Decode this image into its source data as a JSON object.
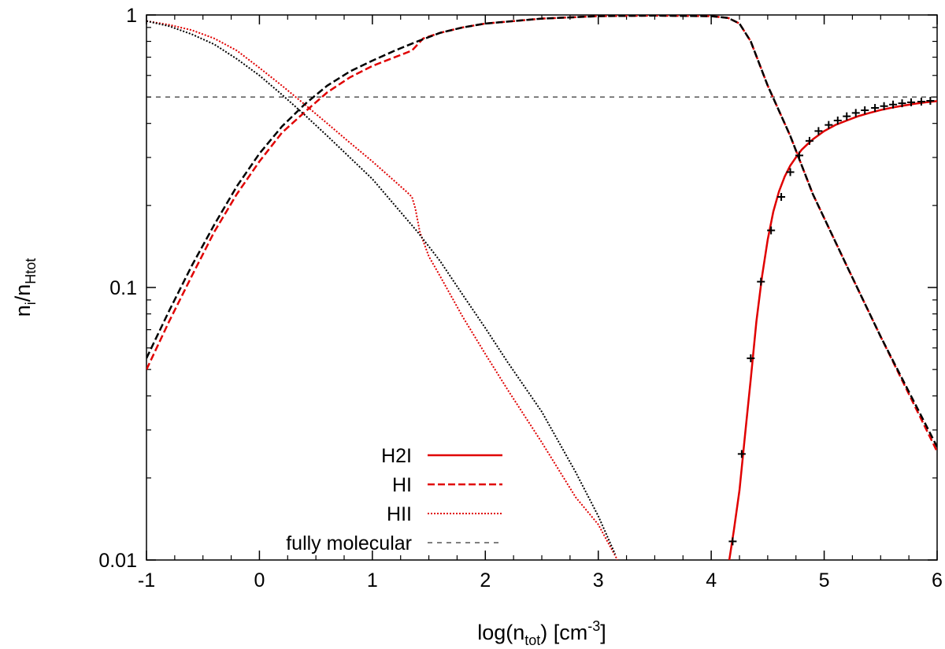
{
  "chart_data": {
    "type": "line",
    "title": "",
    "xlabel": {
      "base": "log(n",
      "sub": "tot",
      "mid": ") [cm",
      "sup": "-3",
      "end": "]"
    },
    "ylabel": {
      "base": "n",
      "sub1": "i",
      "mid": "/n",
      "sub2": "Htot"
    },
    "xlim": [
      -1,
      6
    ],
    "ylim": [
      0.01,
      1
    ],
    "yscale": "log",
    "xticks": [
      -1,
      0,
      1,
      2,
      3,
      4,
      5,
      6
    ],
    "xtick_labels": [
      "-1",
      "0",
      "1",
      "2",
      "3",
      "4",
      "5",
      "6"
    ],
    "yticks": [
      0.01,
      0.1,
      1
    ],
    "ytick_labels": [
      "0.01",
      "0.1",
      "1"
    ],
    "legend_position": "bottom-left",
    "colors": {
      "red": "#e00000",
      "black": "#000000"
    },
    "legend": [
      {
        "label": "H2I",
        "style": "solid",
        "color": "#e00000"
      },
      {
        "label": "HI",
        "style": "dashed",
        "color": "#e00000"
      },
      {
        "label": "HII",
        "style": "dotted",
        "color": "#e00000"
      },
      {
        "label": "fully molecular",
        "style": "thin-dashed",
        "color": "#000000"
      }
    ],
    "series": [
      {
        "name": "H2I (red)",
        "style": "solid",
        "color": "#e00000",
        "x": [
          4.16,
          4.2,
          4.25,
          4.3,
          4.35,
          4.4,
          4.45,
          4.5,
          4.55,
          4.6,
          4.65,
          4.7,
          4.75,
          4.8,
          4.85,
          4.9,
          5.0,
          5.1,
          5.2,
          5.3,
          5.4,
          5.5,
          5.6,
          5.7,
          5.8,
          5.9,
          6.0
        ],
        "y": [
          0.01,
          0.0128,
          0.018,
          0.029,
          0.046,
          0.075,
          0.11,
          0.15,
          0.19,
          0.225,
          0.255,
          0.28,
          0.3,
          0.32,
          0.335,
          0.35,
          0.375,
          0.395,
          0.41,
          0.425,
          0.437,
          0.448,
          0.457,
          0.465,
          0.472,
          0.478,
          0.483
        ]
      },
      {
        "name": "HI (red)",
        "style": "dashed",
        "color": "#e00000",
        "x": [
          -1.0,
          -0.8,
          -0.6,
          -0.4,
          -0.2,
          0.0,
          0.2,
          0.4,
          0.6,
          0.8,
          1.0,
          1.2,
          1.35,
          1.45,
          1.6,
          1.8,
          2.0,
          2.5,
          3.0,
          3.5,
          4.0,
          4.15,
          4.25,
          4.35,
          4.5,
          4.7,
          4.9,
          5.2,
          5.5,
          6.0
        ],
        "y": [
          0.05,
          0.075,
          0.11,
          0.16,
          0.22,
          0.29,
          0.37,
          0.44,
          0.52,
          0.59,
          0.65,
          0.7,
          0.74,
          0.82,
          0.86,
          0.9,
          0.93,
          0.97,
          0.99,
          0.995,
          0.99,
          0.975,
          0.93,
          0.8,
          0.55,
          0.36,
          0.22,
          0.12,
          0.066,
          0.025
        ]
      },
      {
        "name": "HII (red)",
        "style": "dotted",
        "color": "#e00000",
        "x": [
          -1.0,
          -0.8,
          -0.6,
          -0.4,
          -0.2,
          0.0,
          0.2,
          0.4,
          0.6,
          0.8,
          1.0,
          1.2,
          1.3,
          1.35,
          1.38,
          1.42,
          1.5,
          1.6,
          1.8,
          2.0,
          2.2,
          2.5,
          2.8,
          3.0,
          3.17
        ],
        "y": [
          0.95,
          0.92,
          0.88,
          0.82,
          0.74,
          0.64,
          0.55,
          0.47,
          0.4,
          0.34,
          0.29,
          0.245,
          0.225,
          0.215,
          0.195,
          0.16,
          0.13,
          0.11,
          0.078,
          0.057,
          0.042,
          0.027,
          0.017,
          0.0135,
          0.01
        ]
      },
      {
        "name": "HI (black)",
        "style": "dashed",
        "color": "#000000",
        "x": [
          -1.0,
          -0.8,
          -0.6,
          -0.4,
          -0.2,
          0.0,
          0.2,
          0.4,
          0.6,
          0.8,
          1.0,
          1.2,
          1.4,
          1.6,
          1.8,
          2.0,
          2.5,
          3.0,
          3.5,
          4.0,
          4.15,
          4.25,
          4.35,
          4.5,
          4.7,
          4.9,
          5.2,
          5.5,
          6.0
        ],
        "y": [
          0.055,
          0.082,
          0.12,
          0.17,
          0.235,
          0.31,
          0.39,
          0.47,
          0.55,
          0.62,
          0.68,
          0.74,
          0.8,
          0.86,
          0.9,
          0.93,
          0.97,
          0.99,
          0.995,
          0.99,
          0.975,
          0.93,
          0.8,
          0.55,
          0.36,
          0.22,
          0.12,
          0.066,
          0.026
        ]
      },
      {
        "name": "HII (black)",
        "style": "dotted",
        "color": "#000000",
        "x": [
          -1.0,
          -0.8,
          -0.6,
          -0.4,
          -0.2,
          0.0,
          0.2,
          0.4,
          0.6,
          0.8,
          1.0,
          1.2,
          1.4,
          1.6,
          1.8,
          2.0,
          2.2,
          2.5,
          2.8,
          3.0,
          3.15
        ],
        "y": [
          0.95,
          0.91,
          0.85,
          0.78,
          0.69,
          0.6,
          0.51,
          0.43,
          0.36,
          0.3,
          0.25,
          0.2,
          0.16,
          0.125,
          0.094,
          0.071,
          0.053,
          0.035,
          0.021,
          0.0145,
          0.0105
        ]
      }
    ],
    "markers": {
      "name": "fully molecular points",
      "symbol": "+",
      "color": "#000000",
      "x": [
        4.19,
        4.27,
        4.35,
        4.44,
        4.53,
        4.62,
        4.7,
        4.78,
        4.87,
        4.95,
        5.04,
        5.12,
        5.2,
        5.28,
        5.36,
        5.45,
        5.53,
        5.61,
        5.69,
        5.77,
        5.86,
        5.94
      ],
      "y": [
        0.0117,
        0.0245,
        0.055,
        0.105,
        0.162,
        0.215,
        0.265,
        0.305,
        0.345,
        0.375,
        0.395,
        0.41,
        0.425,
        0.437,
        0.447,
        0.456,
        0.463,
        0.469,
        0.474,
        0.478,
        0.481,
        0.484
      ]
    },
    "reference_line": {
      "name": "fully molecular",
      "y": 0.5,
      "style": "thin-dashed",
      "color": "#000000"
    }
  }
}
